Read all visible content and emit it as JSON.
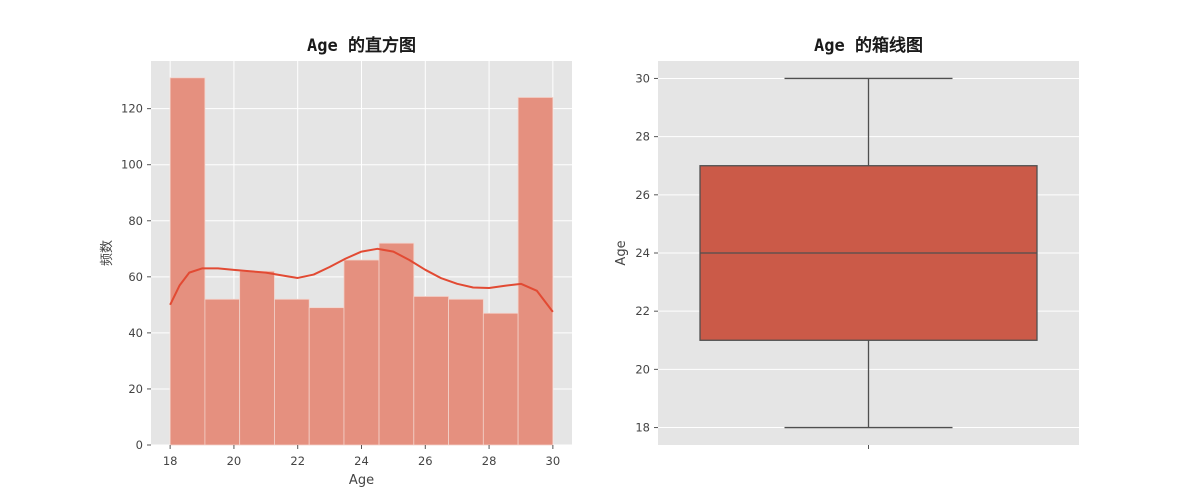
{
  "chart_data": [
    {
      "type": "bar",
      "title": "Age 的直方图",
      "xlabel": "Age",
      "ylabel": "频数",
      "bins": [
        {
          "x0": 18.0,
          "x1": 19.09,
          "count": 131
        },
        {
          "x0": 19.09,
          "x1": 20.18,
          "count": 52
        },
        {
          "x0": 20.18,
          "x1": 21.27,
          "count": 62
        },
        {
          "x0": 21.27,
          "x1": 22.36,
          "count": 52
        },
        {
          "x0": 22.36,
          "x1": 23.45,
          "count": 49
        },
        {
          "x0": 23.45,
          "x1": 24.55,
          "count": 66
        },
        {
          "x0": 24.55,
          "x1": 25.64,
          "count": 72
        },
        {
          "x0": 25.64,
          "x1": 26.73,
          "count": 53
        },
        {
          "x0": 26.73,
          "x1": 27.82,
          "count": 52
        },
        {
          "x0": 27.82,
          "x1": 28.91,
          "count": 47
        },
        {
          "x0": 28.91,
          "x1": 30.0,
          "count": 124
        }
      ],
      "kde": {
        "x": [
          18.0,
          18.3,
          18.6,
          19.0,
          19.5,
          20.0,
          20.5,
          21.0,
          21.5,
          22.0,
          22.5,
          23.0,
          23.5,
          24.0,
          24.5,
          25.0,
          25.5,
          26.0,
          26.5,
          27.0,
          27.5,
          28.0,
          28.5,
          29.0,
          29.5,
          30.0
        ],
        "y": [
          50,
          57,
          61.5,
          63,
          63,
          62.5,
          62,
          61.5,
          60.5,
          59.6,
          60.8,
          63.5,
          66.5,
          69,
          70,
          69,
          66,
          62.5,
          59.5,
          57.5,
          56.2,
          56,
          56.8,
          57.5,
          55,
          47.5
        ]
      },
      "xlim": [
        17.4,
        30.6
      ],
      "ylim": [
        0,
        137
      ],
      "xticks": [
        18,
        20,
        22,
        24,
        26,
        28,
        30
      ],
      "yticks": [
        0,
        20,
        40,
        60,
        80,
        100,
        120
      ],
      "grid": true,
      "bar_color": "#e5907f",
      "line_color": "#e24a33"
    },
    {
      "type": "box",
      "title": "Age 的箱线图",
      "ylabel": "Age",
      "whisker_low": 18,
      "q1": 21,
      "median": 24,
      "q3": 27,
      "whisker_high": 30,
      "ylim": [
        17.4,
        30.6
      ],
      "yticks": [
        18,
        20,
        22,
        24,
        26,
        28,
        30
      ],
      "grid": true,
      "box_color": "#cb5a48",
      "line_color": "#4f4f4f"
    }
  ],
  "colors": {
    "plot_bg": "#e5e5e5",
    "grid": "#ffffff",
    "page_bg": "#ffffff"
  }
}
